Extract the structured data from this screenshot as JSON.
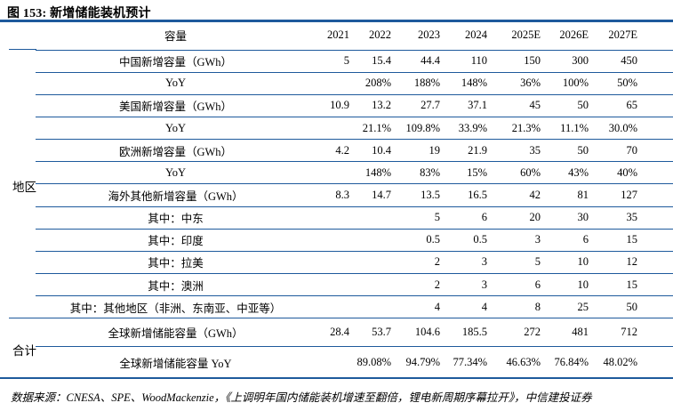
{
  "title": "图 153: 新增储能装机预计",
  "colors": {
    "rule_blue": "#1e5a9c",
    "text": "#000000",
    "background": "#ffffff"
  },
  "table": {
    "capacity_header": "容量",
    "year_headers": [
      "2021",
      "2022",
      "2023",
      "2024",
      "2025E",
      "2026E",
      "2027E"
    ],
    "group_labels": {
      "region": "地区",
      "total": "合计"
    },
    "rows": [
      {
        "label": "中国新增容量（GWh）",
        "values": [
          "5",
          "15.4",
          "44.4",
          "110",
          "150",
          "300",
          "450"
        ],
        "label_bold": false,
        "values_bold": false,
        "section": "region"
      },
      {
        "label": "YoY",
        "values": [
          "",
          "208%",
          "188%",
          "148%",
          "36%",
          "100%",
          "50%"
        ],
        "label_bold": true,
        "values_bold": false,
        "section": "region"
      },
      {
        "label": "美国新增容量（GWh）",
        "values": [
          "10.9",
          "13.2",
          "27.7",
          "37.1",
          "45",
          "50",
          "65"
        ],
        "label_bold": false,
        "values_bold": false,
        "section": "region"
      },
      {
        "label": "YoY",
        "values": [
          "",
          "21.1%",
          "109.8%",
          "33.9%",
          "21.3%",
          "11.1%",
          "30.0%"
        ],
        "label_bold": true,
        "values_bold": false,
        "section": "region"
      },
      {
        "label": "欧洲新增容量（GWh）",
        "values": [
          "4.2",
          "10.4",
          "19",
          "21.9",
          "35",
          "50",
          "70"
        ],
        "label_bold": false,
        "values_bold": false,
        "section": "region"
      },
      {
        "label": "YoY",
        "values": [
          "",
          "148%",
          "83%",
          "15%",
          "60%",
          "43%",
          "40%"
        ],
        "label_bold": true,
        "values_bold": false,
        "section": "region"
      },
      {
        "label": "海外其他新增容量（GWh）",
        "values": [
          "8.3",
          "14.7",
          "13.5",
          "16.5",
          "42",
          "81",
          "127"
        ],
        "label_bold": false,
        "values_bold": false,
        "section": "region"
      },
      {
        "label": "其中：中东",
        "values": [
          "",
          "",
          "5",
          "6",
          "20",
          "30",
          "35"
        ],
        "label_bold": false,
        "values_bold": false,
        "section": "region"
      },
      {
        "label": "其中：印度",
        "values": [
          "",
          "",
          "0.5",
          "0.5",
          "3",
          "6",
          "15"
        ],
        "label_bold": false,
        "values_bold": false,
        "section": "region"
      },
      {
        "label": "其中：拉美",
        "values": [
          "",
          "",
          "2",
          "3",
          "5",
          "10",
          "12"
        ],
        "label_bold": false,
        "values_bold": false,
        "section": "region"
      },
      {
        "label": "其中：澳洲",
        "values": [
          "",
          "",
          "2",
          "3",
          "6",
          "10",
          "15"
        ],
        "label_bold": false,
        "values_bold": false,
        "section": "region"
      },
      {
        "label": "其中：其他地区（非洲、东南亚、中亚等）",
        "values": [
          "",
          "",
          "4",
          "4",
          "8",
          "25",
          "50"
        ],
        "label_bold": false,
        "values_bold": false,
        "section": "region"
      },
      {
        "label": "全球新增储能容量（GWh）",
        "values": [
          "28.4",
          "53.7",
          "104.6",
          "185.5",
          "272",
          "481",
          "712"
        ],
        "label_bold": true,
        "values_bold": true,
        "section": "total"
      },
      {
        "label": "全球新增储能容量 YoY",
        "values": [
          "",
          "89.08%",
          "94.79%",
          "77.34%",
          "46.63%",
          "76.84%",
          "48.02%"
        ],
        "label_bold": true,
        "values_bold": true,
        "section": "total"
      }
    ]
  },
  "source_note": "数据来源：CNESA、SPE、WoodMackenzie，《上调明年国内储能装机增速至翻倍，锂电新周期序幕拉开》，中信建投证券"
}
